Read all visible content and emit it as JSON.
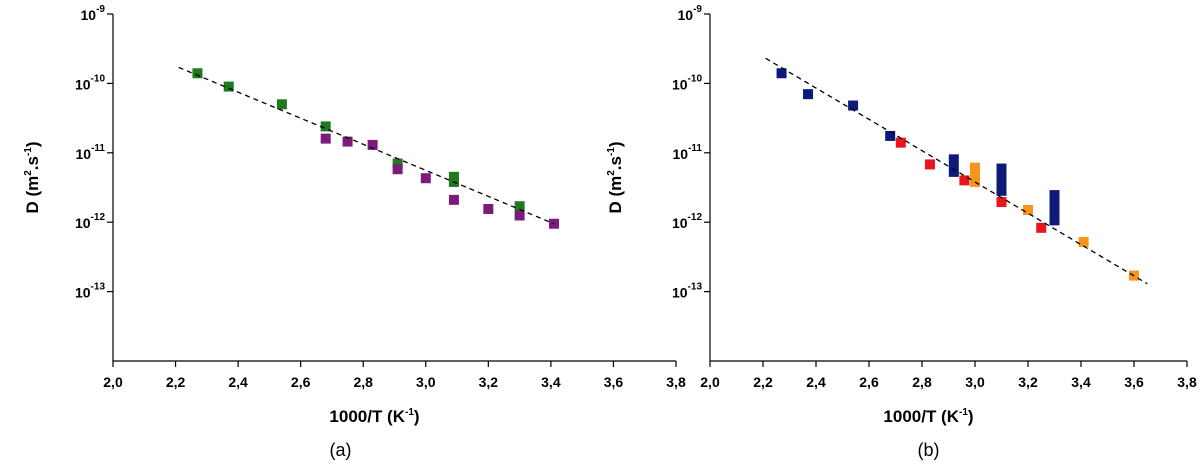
{
  "chart_data": [
    {
      "type": "scatter",
      "panel_label": "(a)",
      "xlabel": {
        "base": "1000/T (K",
        "sup": "-1",
        "tail": ")"
      },
      "ylabel": {
        "p1": "D (m",
        "s1": "2",
        "p2": ".s",
        "s2": "-1",
        "p3": ")"
      },
      "xlim": [
        2.0,
        3.8
      ],
      "ylog": true,
      "ylim": [
        1e-14,
        1e-09
      ],
      "x_ticks": [
        "2,0",
        "2,2",
        "2,4",
        "2,6",
        "2,8",
        "3,0",
        "3,2",
        "3,4",
        "3,6",
        "3,8"
      ],
      "y_ticks": [
        {
          "base": "10",
          "exp": "-9"
        },
        {
          "base": "10",
          "exp": "-10"
        },
        {
          "base": "10",
          "exp": "-11"
        },
        {
          "base": "10",
          "exp": "-12"
        },
        {
          "base": "10",
          "exp": "-13"
        }
      ],
      "y_tick_values": [
        1e-09,
        1e-10,
        1e-11,
        1e-12,
        1e-13
      ],
      "grid": false,
      "series": [
        {
          "color": "#1f7a1f",
          "points": [
            [
              2.27,
              1.4e-10
            ],
            [
              2.37,
              9e-11
            ],
            [
              2.54,
              5e-11
            ],
            [
              2.68,
              2.4e-11
            ],
            [
              2.91,
              7e-12
            ],
            [
              3.09,
              3.8e-12
            ],
            [
              3.09,
              4.5e-12
            ],
            [
              3.3,
              1.7e-12
            ]
          ]
        },
        {
          "color": "#7d1a7d",
          "points": [
            [
              2.68,
              1.6e-11
            ],
            [
              2.75,
              1.45e-11
            ],
            [
              2.83,
              1.3e-11
            ],
            [
              2.91,
              5.8e-12
            ],
            [
              3.0,
              4.3e-12
            ],
            [
              3.09,
              2.1e-12
            ],
            [
              3.2,
              1.55e-12
            ],
            [
              3.3,
              1.25e-12
            ],
            [
              3.41,
              9.5e-13
            ]
          ]
        }
      ],
      "bars": [],
      "fit_line": {
        "x": [
          2.21,
          3.41
        ],
        "y": [
          1.7e-10,
          9.5e-13
        ]
      }
    },
    {
      "type": "scatter",
      "panel_label": "(b)",
      "xlabel": {
        "base": "1000/T (K",
        "sup": "-1",
        "tail": ")"
      },
      "ylabel": {
        "p1": "D (m",
        "s1": "2",
        "p2": ".s",
        "s2": "-1",
        "p3": ")"
      },
      "xlim": [
        2.0,
        3.8
      ],
      "ylog": true,
      "ylim": [
        1e-14,
        1e-09
      ],
      "x_ticks": [
        "2,0",
        "2,2",
        "2,4",
        "2,6",
        "2,8",
        "3,0",
        "3,2",
        "3,4",
        "3,6",
        "3,8"
      ],
      "y_ticks": [
        {
          "base": "10",
          "exp": "-9"
        },
        {
          "base": "10",
          "exp": "-10"
        },
        {
          "base": "10",
          "exp": "-11"
        },
        {
          "base": "10",
          "exp": "-12"
        },
        {
          "base": "10",
          "exp": "-13"
        }
      ],
      "y_tick_values": [
        1e-09,
        1e-10,
        1e-11,
        1e-12,
        1e-13
      ],
      "grid": false,
      "series": [
        {
          "color": "#0d1a7a",
          "points": [
            [
              2.27,
              1.4e-10
            ],
            [
              2.37,
              7e-11
            ],
            [
              2.54,
              4.8e-11
            ],
            [
              2.68,
              1.75e-11
            ]
          ]
        },
        {
          "color": "#e8141e",
          "points": [
            [
              2.72,
              1.4e-11
            ],
            [
              2.83,
              6.8e-12
            ],
            [
              2.96,
              4e-12
            ],
            [
              3.1,
              1.95e-12
            ],
            [
              3.25,
              8.3e-13
            ]
          ]
        },
        {
          "color": "#f7941d",
          "points": [
            [
              3.0,
              3.8e-12
            ],
            [
              3.2,
              1.5e-12
            ],
            [
              3.41,
              5.2e-13
            ],
            [
              3.6,
              1.7e-13
            ]
          ]
        }
      ],
      "bars": [
        {
          "color": "#0d1a7a",
          "x": 2.92,
          "y": [
            4.5e-12,
            9.5e-12
          ]
        },
        {
          "color": "#0d1a7a",
          "x": 3.1,
          "y": [
            2.4e-12,
            7e-12
          ]
        },
        {
          "color": "#0d1a7a",
          "x": 3.3,
          "y": [
            9e-13,
            2.9e-12
          ]
        },
        {
          "color": "#f7941d",
          "x": 3.0,
          "y": [
            3.6e-12,
            7.2e-12
          ]
        }
      ],
      "fit_line": {
        "x": [
          2.21,
          3.65
        ],
        "y": [
          2.3e-10,
          1.3e-13
        ]
      }
    }
  ]
}
